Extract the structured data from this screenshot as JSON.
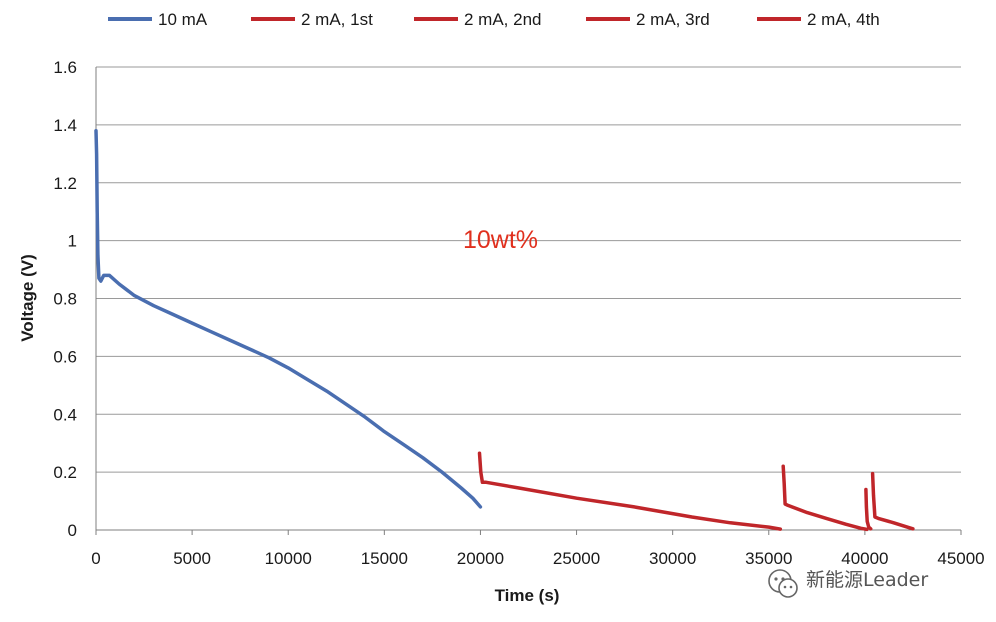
{
  "chart_data": {
    "type": "line",
    "title": "",
    "xlabel": "Time (s)",
    "ylabel": "Voltage (V)",
    "xlim": [
      0,
      45000
    ],
    "ylim": [
      0,
      1.6
    ],
    "xticks": [
      0,
      5000,
      10000,
      15000,
      20000,
      25000,
      30000,
      35000,
      40000,
      45000
    ],
    "xtick_labels": [
      "0",
      "5000",
      "10000",
      "15000",
      "20000",
      "25000",
      "30000",
      "35000",
      "40000",
      "45000"
    ],
    "yticks": [
      0,
      0.2,
      0.4,
      0.6,
      0.8,
      1.0,
      1.2,
      1.4,
      1.6
    ],
    "ytick_labels": [
      "0",
      "0.2",
      "0.4",
      "0.6",
      "0.8",
      "1",
      "1.2",
      "1.4",
      "1.6"
    ],
    "grid": "horizontal",
    "legend_position": "top",
    "annotation": {
      "text": "10wt%",
      "x": 23000,
      "y": 1.0,
      "color": "#e0301e"
    },
    "series": [
      {
        "name": "10 mA",
        "color": "#4a6eb0",
        "x": [
          0,
          30,
          60,
          100,
          150,
          250,
          400,
          700,
          1200,
          2000,
          3000,
          4000,
          5000,
          6000,
          7000,
          8000,
          9000,
          10000,
          11000,
          12000,
          13000,
          14000,
          15000,
          16000,
          17000,
          18000,
          19000,
          19600,
          20000
        ],
        "y": [
          1.38,
          1.3,
          1.1,
          0.95,
          0.87,
          0.86,
          0.88,
          0.88,
          0.85,
          0.81,
          0.775,
          0.745,
          0.715,
          0.685,
          0.655,
          0.625,
          0.595,
          0.56,
          0.52,
          0.48,
          0.435,
          0.39,
          0.34,
          0.295,
          0.25,
          0.2,
          0.145,
          0.11,
          0.08
        ]
      },
      {
        "name": "2 mA, 1st",
        "color": "#c0262a",
        "x": [
          19950,
          20020,
          20100,
          20300,
          22000,
          25000,
          28000,
          31000,
          33000,
          35000,
          35600
        ],
        "y": [
          0.265,
          0.2,
          0.165,
          0.165,
          0.145,
          0.11,
          0.08,
          0.045,
          0.025,
          0.01,
          0.003
        ]
      },
      {
        "name": "2 mA, 2nd",
        "color": "#c0262a",
        "x": [
          35750,
          35800,
          35850,
          36000,
          37000,
          38000,
          39000,
          39800,
          40100
        ],
        "y": [
          0.22,
          0.16,
          0.09,
          0.085,
          0.06,
          0.04,
          0.02,
          0.006,
          0.002
        ]
      },
      {
        "name": "2 mA, 3rd",
        "color": "#c0262a",
        "x": [
          40050,
          40080,
          40120,
          40200,
          40300
        ],
        "y": [
          0.14,
          0.08,
          0.03,
          0.01,
          0.004
        ]
      },
      {
        "name": "2 mA, 4th",
        "color": "#c0262a",
        "x": [
          40400,
          40450,
          40520,
          40700,
          41500,
          42200,
          42500
        ],
        "y": [
          0.195,
          0.12,
          0.045,
          0.04,
          0.025,
          0.01,
          0.004
        ]
      }
    ]
  },
  "watermark": {
    "text": "新能源Leader",
    "icon": "wechat-icon"
  }
}
